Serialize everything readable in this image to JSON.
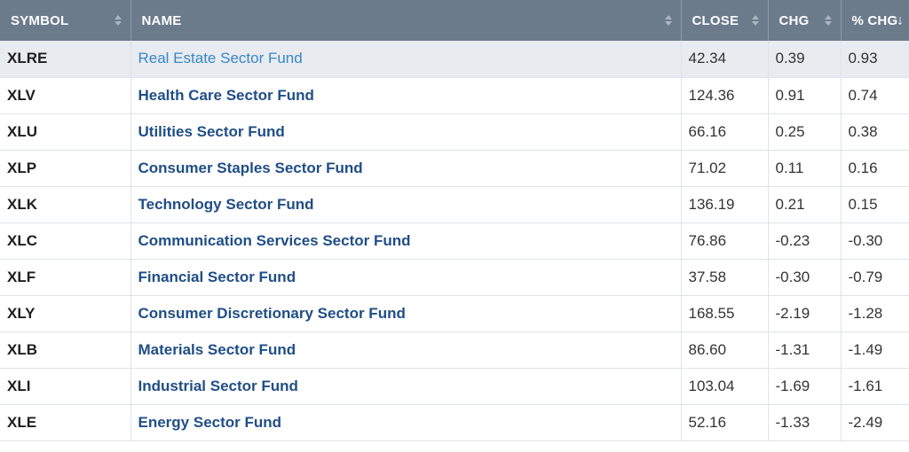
{
  "columns": {
    "symbol": "SYMBOL",
    "name": "NAME",
    "close": "CLOSE",
    "chg": "CHG",
    "pct_chg": "% CHG"
  },
  "sort": {
    "column": "pct_chg",
    "direction": "descending",
    "indicator": "↓"
  },
  "rows": [
    {
      "symbol": "XLRE",
      "name": "Real Estate Sector Fund",
      "close": "42.34",
      "chg": "0.39",
      "pct": "0.93"
    },
    {
      "symbol": "XLV",
      "name": "Health Care Sector Fund",
      "close": "124.36",
      "chg": "0.91",
      "pct": "0.74"
    },
    {
      "symbol": "XLU",
      "name": "Utilities Sector Fund",
      "close": "66.16",
      "chg": "0.25",
      "pct": "0.38"
    },
    {
      "symbol": "XLP",
      "name": "Consumer Staples Sector Fund",
      "close": "71.02",
      "chg": "0.11",
      "pct": "0.16"
    },
    {
      "symbol": "XLK",
      "name": "Technology Sector Fund",
      "close": "136.19",
      "chg": "0.21",
      "pct": "0.15"
    },
    {
      "symbol": "XLC",
      "name": "Communication Services Sector Fund",
      "close": "76.86",
      "chg": "-0.23",
      "pct": "-0.30"
    },
    {
      "symbol": "XLF",
      "name": "Financial Sector Fund",
      "close": "37.58",
      "chg": "-0.30",
      "pct": "-0.79"
    },
    {
      "symbol": "XLY",
      "name": "Consumer Discretionary Sector Fund",
      "close": "168.55",
      "chg": "-2.19",
      "pct": "-1.28"
    },
    {
      "symbol": "XLB",
      "name": "Materials Sector Fund",
      "close": "86.60",
      "chg": "-1.31",
      "pct": "-1.49"
    },
    {
      "symbol": "XLI",
      "name": "Industrial Sector Fund",
      "close": "103.04",
      "chg": "-1.69",
      "pct": "-1.61"
    },
    {
      "symbol": "XLE",
      "name": "Energy Sector Fund",
      "close": "52.16",
      "chg": "-1.33",
      "pct": "-2.49"
    }
  ],
  "colors": {
    "header_bg": "#6b7b8c",
    "link": "#1f4e86",
    "link_hover": "#3a86c8",
    "row_highlight": "#e8ebef"
  }
}
